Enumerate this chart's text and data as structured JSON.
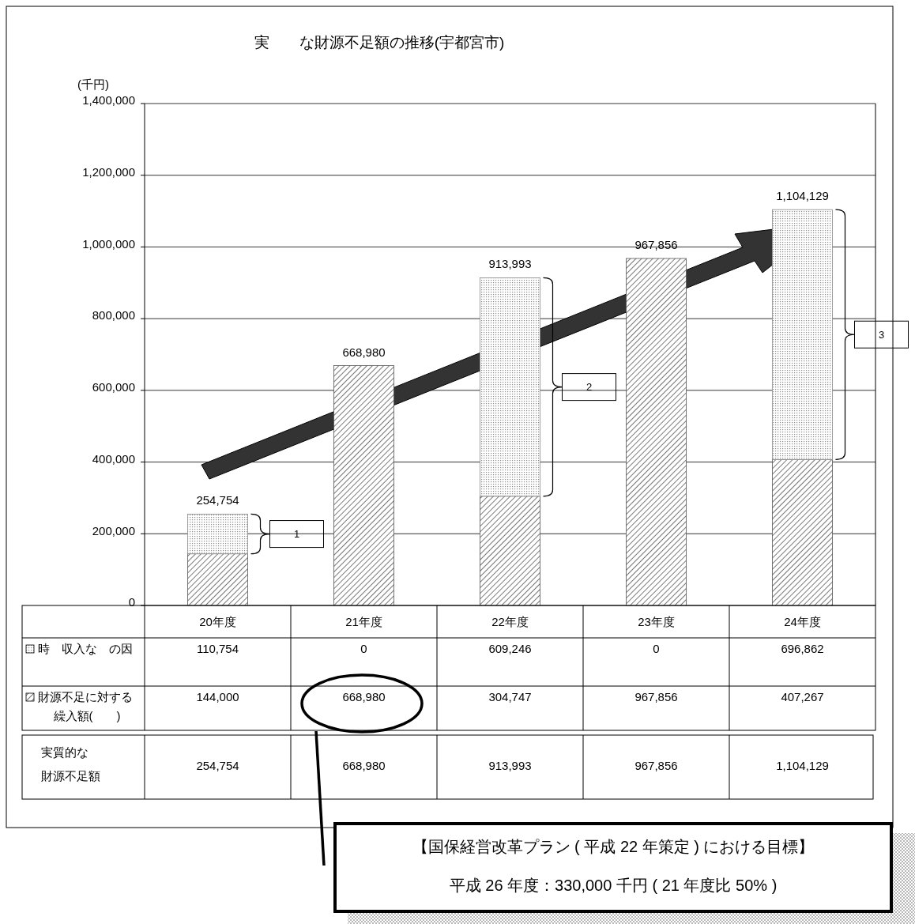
{
  "chart_data": {
    "type": "bar",
    "title": "実　　な財源不足額の推移(宇都宮市)",
    "ylabel": "(千円)",
    "stacked": true,
    "categories": [
      "20年度",
      "21年度",
      "22年度",
      "23年度",
      "24年度"
    ],
    "series": [
      {
        "name": "財源不足に対する繰入額(　　)",
        "color": "#555555",
        "values": [
          144000,
          668980,
          304747,
          967856,
          407267
        ],
        "value_labels": [
          "144,000",
          "668,980",
          "304,747",
          "967,856",
          "407,267"
        ]
      },
      {
        "name": "時　収入な　の因",
        "color": "#8c8c8c",
        "values": [
          110754,
          0,
          609246,
          0,
          696862
        ],
        "value_labels": [
          "110,754",
          "0",
          "609,246",
          "0",
          "696,862"
        ]
      }
    ],
    "ylim": [
      0,
      1400000
    ],
    "yticks": [
      0,
      {
        "value": 200000,
        "label": "200,000"
      },
      {
        "value": 400000,
        "label": "400,000"
      },
      {
        "value": 600000,
        "label": "600,000"
      },
      {
        "value": 800000,
        "label": "800,000"
      },
      {
        "value": 1000000,
        "label": "1,000,000"
      },
      {
        "value": 1200000,
        "label": "1,200,000"
      },
      {
        "value": 1400000,
        "label": "1,400,000"
      }
    ],
    "grid": "y",
    "legend": "bottom left",
    "totals": [
      "254,754",
      "668,980",
      "913,993",
      "967,856",
      "1,104,129"
    ],
    "annotations": [
      "実質的な財源不足額",
      "【国保経営改革プラン ( 平成 22 年策定 ) における目標】",
      "平成 26 年度：330,000 千円 ( 21 年度比 50% )",
      "1",
      "2",
      "3"
    ]
  }
}
